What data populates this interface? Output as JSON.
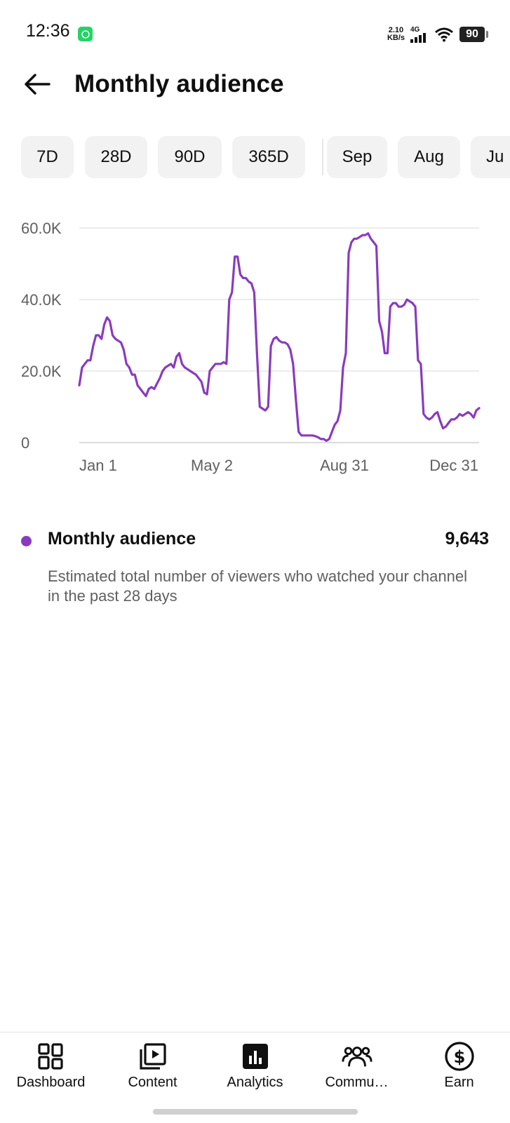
{
  "status_bar": {
    "time": "12:36",
    "net_speed_value": "2.10",
    "net_speed_unit": "KB/s",
    "network_type": "4G",
    "battery": "90"
  },
  "header": {
    "title": "Monthly audience",
    "back_icon": "arrow-left-icon"
  },
  "chips": {
    "items": [
      {
        "label": "7D"
      },
      {
        "label": "28D"
      },
      {
        "label": "90D"
      },
      {
        "label": "365D"
      },
      {
        "label": "Sep"
      },
      {
        "label": "Aug"
      },
      {
        "label": "Ju"
      }
    ]
  },
  "chart_data": {
    "type": "line",
    "title": "",
    "xlabel": "",
    "ylabel": "",
    "ylim": [
      0,
      60000
    ],
    "y_ticks": [
      "0",
      "20.0K",
      "40.0K",
      "60.0K"
    ],
    "x_ticks": [
      "Jan 1",
      "May 2",
      "Aug 31",
      "Dec 31"
    ],
    "grid": true,
    "color": "#8a3bbd",
    "series": [
      {
        "values": [
          16000,
          21000,
          22000,
          23000,
          23000,
          27000,
          30000,
          30000,
          29000,
          33000,
          35000,
          34000,
          30000,
          29000,
          28500,
          28000,
          26000,
          22000,
          21000,
          19000,
          19000,
          16000,
          15000,
          14000,
          13000,
          15000,
          15500,
          15000,
          16500,
          18000,
          20000,
          21000,
          21500,
          22000,
          21000,
          24000,
          25000,
          22000,
          21000,
          20500,
          20000,
          19500,
          19000,
          18000,
          17000,
          14000,
          13500,
          20000,
          21000,
          22000,
          22000,
          22000,
          22500,
          22000,
          40000,
          42000,
          52000,
          52000,
          47000,
          46000,
          46000,
          45000,
          44500,
          42000,
          25000,
          10000,
          9500,
          9000,
          10000,
          27000,
          29000,
          29500,
          28500,
          28000,
          28000,
          27500,
          26000,
          22000,
          12000,
          3000,
          2000,
          2000,
          2000,
          2000,
          2000,
          1800,
          1500,
          1000,
          1000,
          500,
          1000,
          3000,
          5000,
          6000,
          9000,
          21000,
          25000,
          53000,
          56000,
          57000,
          57000,
          57500,
          58000,
          58000,
          58500,
          57000,
          56000,
          55000,
          34000,
          31000,
          25000,
          25000,
          38000,
          39000,
          39000,
          38000,
          38000,
          38500,
          40000,
          39500,
          39000,
          38000,
          23000,
          22000,
          8000,
          7000,
          6500,
          7000,
          8000,
          8500,
          6000,
          4000,
          4500,
          5500,
          6500,
          6500,
          7000,
          8000,
          7500,
          8000,
          8500,
          8000,
          7000,
          9000,
          9643
        ]
      }
    ]
  },
  "metric": {
    "label": "Monthly audience",
    "value": "9,643",
    "description": "Estimated total number of viewers who watched your channel in the past 28 days",
    "color": "#8a3bbd"
  },
  "bottom_nav": {
    "items": [
      {
        "label": "Dashboard",
        "icon": "dashboard-icon"
      },
      {
        "label": "Content",
        "icon": "content-icon"
      },
      {
        "label": "Analytics",
        "icon": "analytics-icon"
      },
      {
        "label": "Commu…",
        "icon": "community-icon"
      },
      {
        "label": "Earn",
        "icon": "earn-icon"
      }
    ],
    "active": "Analytics"
  }
}
